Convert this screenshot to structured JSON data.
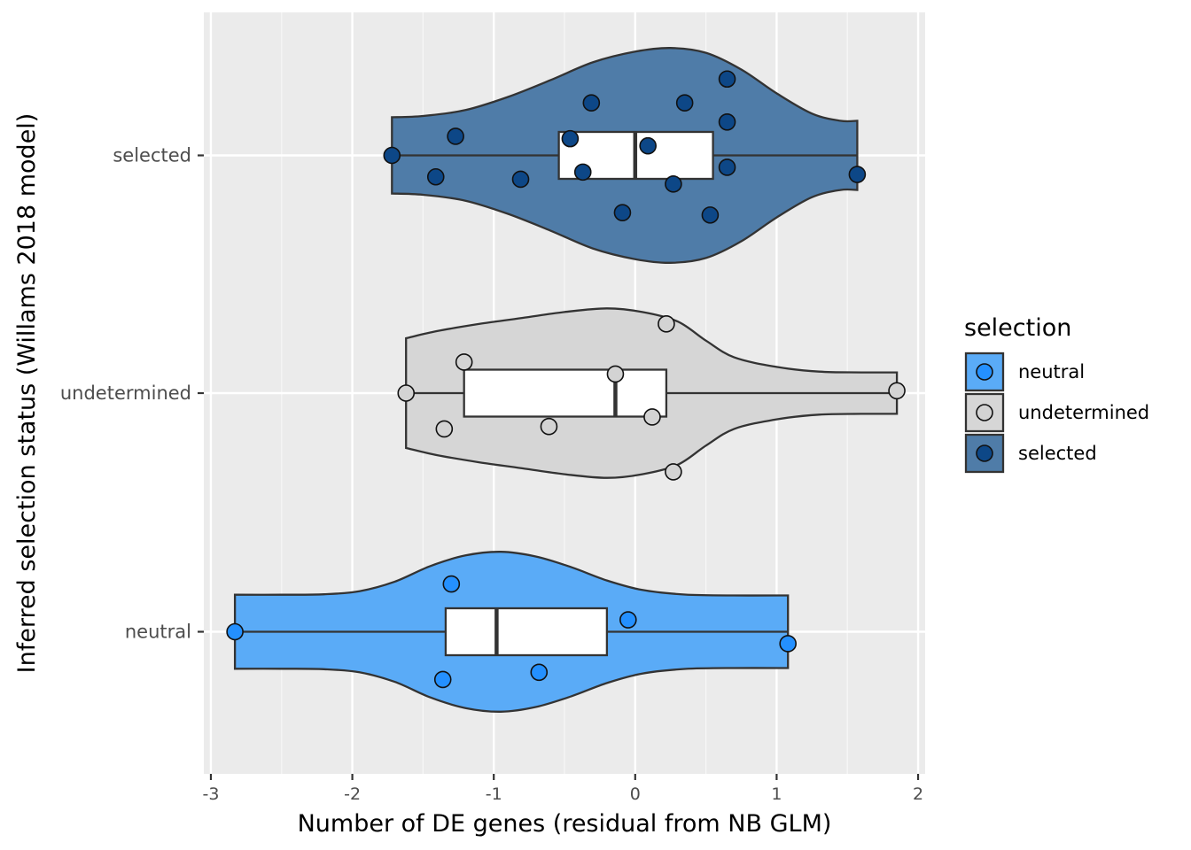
{
  "chart_data": {
    "type": "violin",
    "title": "",
    "xlabel": "Number of DE genes (residual from NB GLM)",
    "ylabel": "Inferred selection status (Willams 2018 model)",
    "xlim": [
      -3.05,
      2.05
    ],
    "x_ticks": [
      -3,
      -2,
      -1,
      0,
      1,
      2
    ],
    "x_tick_labels": [
      "-3",
      "-2",
      "-1",
      "0",
      "1",
      "2"
    ],
    "categories": [
      "neutral",
      "undetermined",
      "selected"
    ],
    "grid": true,
    "legend": {
      "title": "selection",
      "position": "right",
      "entries": [
        "neutral",
        "undetermined",
        "selected"
      ]
    },
    "colors": {
      "panel_bg": "#ebebeb",
      "grid": "#ffffff",
      "outline": "#333333",
      "neutral_fill": "#5aabf7",
      "neutral_point": "#2490ff",
      "undetermined_fill": "#d6d6d6",
      "undetermined_point": "#d3d3d3",
      "selected_fill": "#4f7ca8",
      "selected_point": "#0d4787"
    },
    "groups": [
      {
        "name": "neutral",
        "points": [
          {
            "x": -2.83,
            "y": 0.0
          },
          {
            "x": -1.3,
            "y": 0.2
          },
          {
            "x": -0.05,
            "y": 0.05
          },
          {
            "x": 1.08,
            "y": -0.05
          },
          {
            "x": -0.68,
            "y": -0.17
          },
          {
            "x": -1.36,
            "y": -0.2
          }
        ],
        "box": {
          "q1": -1.34,
          "median": -0.98,
          "q3": -0.2,
          "whisker_low": -2.83,
          "whisker_high": 1.08
        },
        "violin": [
          [
            -2.83,
            0.155
          ],
          [
            -2.5,
            0.155
          ],
          [
            -2.2,
            0.157
          ],
          [
            -1.95,
            0.17
          ],
          [
            -1.7,
            0.21
          ],
          [
            -1.45,
            0.275
          ],
          [
            -1.2,
            0.32
          ],
          [
            -0.95,
            0.335
          ],
          [
            -0.7,
            0.315
          ],
          [
            -0.45,
            0.27
          ],
          [
            -0.2,
            0.215
          ],
          [
            0.05,
            0.175
          ],
          [
            0.35,
            0.156
          ],
          [
            0.7,
            0.152
          ],
          [
            1.08,
            0.152
          ]
        ]
      },
      {
        "name": "undetermined",
        "points": [
          {
            "x": -1.62,
            "y": 0.0
          },
          {
            "x": -1.21,
            "y": 0.13
          },
          {
            "x": -1.35,
            "y": -0.15
          },
          {
            "x": -0.61,
            "y": -0.14
          },
          {
            "x": -0.14,
            "y": 0.08
          },
          {
            "x": 0.12,
            "y": -0.1
          },
          {
            "x": 0.22,
            "y": 0.29
          },
          {
            "x": 0.27,
            "y": -0.33
          },
          {
            "x": 1.85,
            "y": 0.01
          }
        ],
        "box": {
          "q1": -1.21,
          "median": -0.14,
          "q3": 0.22,
          "whisker_low": -1.62,
          "whisker_high": 1.85
        },
        "violin": [
          [
            -1.62,
            0.23
          ],
          [
            -1.4,
            0.26
          ],
          [
            -1.1,
            0.29
          ],
          [
            -0.8,
            0.315
          ],
          [
            -0.5,
            0.34
          ],
          [
            -0.2,
            0.355
          ],
          [
            0.05,
            0.34
          ],
          [
            0.3,
            0.3
          ],
          [
            0.5,
            0.22
          ],
          [
            0.7,
            0.15
          ],
          [
            1.0,
            0.11
          ],
          [
            1.3,
            0.09
          ],
          [
            1.6,
            0.087
          ],
          [
            1.85,
            0.087
          ]
        ]
      },
      {
        "name": "selected",
        "points": [
          {
            "x": -1.72,
            "y": 0.0
          },
          {
            "x": -1.41,
            "y": -0.09
          },
          {
            "x": -1.27,
            "y": 0.08
          },
          {
            "x": -0.81,
            "y": -0.1
          },
          {
            "x": -0.46,
            "y": 0.07
          },
          {
            "x": -0.37,
            "y": -0.07
          },
          {
            "x": -0.31,
            "y": 0.22
          },
          {
            "x": -0.09,
            "y": -0.24
          },
          {
            "x": 0.09,
            "y": 0.04
          },
          {
            "x": 0.27,
            "y": -0.12
          },
          {
            "x": 0.35,
            "y": 0.22
          },
          {
            "x": 0.53,
            "y": -0.25
          },
          {
            "x": 0.65,
            "y": 0.32
          },
          {
            "x": 0.65,
            "y": 0.14
          },
          {
            "x": 0.65,
            "y": -0.05
          },
          {
            "x": 1.57,
            "y": -0.08
          }
        ],
        "box": {
          "q1": -0.54,
          "median": 0.0,
          "q3": 0.55,
          "whisker_low": -1.72,
          "whisker_high": 1.57
        },
        "violin": [
          [
            -1.72,
            0.16
          ],
          [
            -1.5,
            0.165
          ],
          [
            -1.2,
            0.19
          ],
          [
            -0.9,
            0.245
          ],
          [
            -0.6,
            0.315
          ],
          [
            -0.3,
            0.39
          ],
          [
            0.0,
            0.435
          ],
          [
            0.25,
            0.45
          ],
          [
            0.5,
            0.43
          ],
          [
            0.75,
            0.36
          ],
          [
            1.0,
            0.26
          ],
          [
            1.25,
            0.175
          ],
          [
            1.45,
            0.145
          ],
          [
            1.57,
            0.145
          ]
        ]
      }
    ]
  }
}
